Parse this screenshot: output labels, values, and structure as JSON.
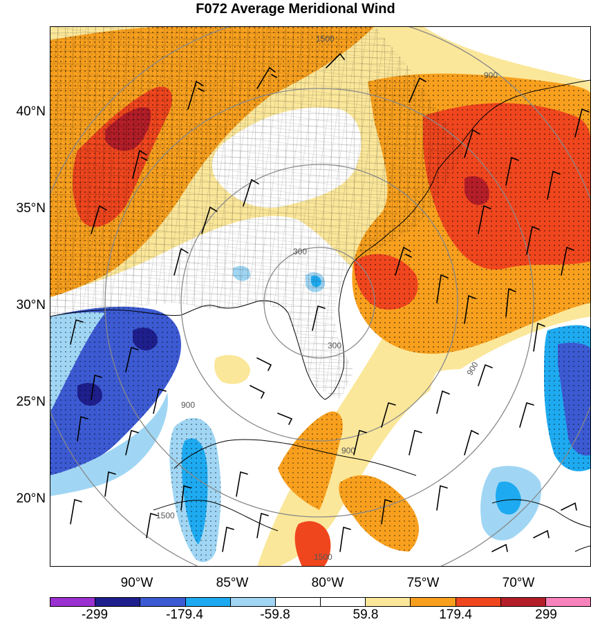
{
  "title": "F072 Average Meridional Wind",
  "lat_labels": [
    "40°N",
    "35°N",
    "30°N",
    "25°N",
    "20°N"
  ],
  "lon_labels": [
    "90°W",
    "85°W",
    "80°W",
    "75°W",
    "70°W"
  ],
  "contour_labels": [
    "1500",
    "900",
    "300",
    "300",
    "900",
    "900",
    "900",
    "1500",
    "1500"
  ],
  "colorbar": {
    "colors": [
      "#9b30d0",
      "#1e1e8c",
      "#3c5ad2",
      "#1eaaf0",
      "#a0d6f4",
      "#ffffff",
      "#ffffff",
      "#fbe79a",
      "#f8a01e",
      "#f0461e",
      "#b41e28",
      "#f882bc"
    ],
    "labels": [
      "-299",
      "-179.4",
      "-59.8",
      "59.8",
      "179.4",
      "299"
    ]
  }
}
